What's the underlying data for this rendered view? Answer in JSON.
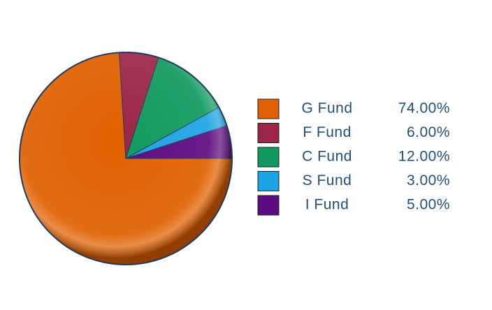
{
  "chart_data": {
    "type": "pie",
    "categories": [
      "G Fund",
      "F Fund",
      "C Fund",
      "S Fund",
      "I Fund"
    ],
    "values": [
      74,
      6,
      12,
      3,
      5
    ],
    "value_labels": [
      "74.00%",
      "6.00%",
      "12.00%",
      "3.00%",
      "5.00%"
    ],
    "colors": [
      "#e06000",
      "#9b2648",
      "#10995f",
      "#1ca3e3",
      "#5c0b80"
    ],
    "legend": "right"
  }
}
